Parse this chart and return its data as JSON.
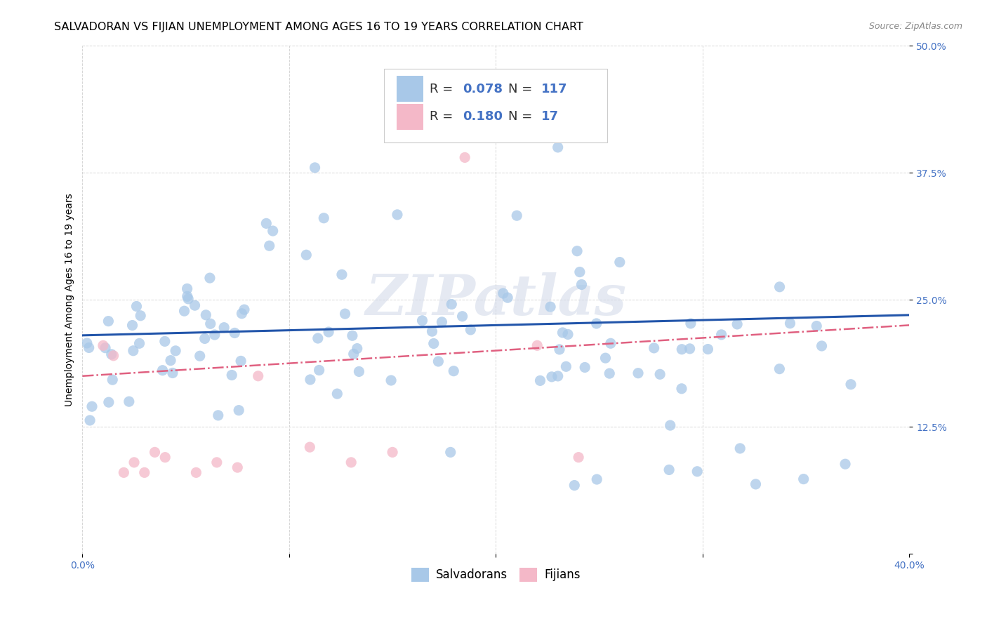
{
  "title": "SALVADORAN VS FIJIAN UNEMPLOYMENT AMONG AGES 16 TO 19 YEARS CORRELATION CHART",
  "source": "Source: ZipAtlas.com",
  "ylabel": "Unemployment Among Ages 16 to 19 years",
  "xlim": [
    0.0,
    0.4
  ],
  "ylim": [
    0.0,
    0.5
  ],
  "xticks": [
    0.0,
    0.1,
    0.2,
    0.3,
    0.4
  ],
  "xticklabels": [
    "0.0%",
    "",
    "",
    "",
    "40.0%"
  ],
  "yticks": [
    0.0,
    0.125,
    0.25,
    0.375,
    0.5
  ],
  "yticklabels": [
    "",
    "12.5%",
    "25.0%",
    "37.5%",
    "50.0%"
  ],
  "salvadoran_R": "0.078",
  "salvadoran_N": "117",
  "fijian_R": "0.180",
  "fijian_N": "17",
  "salvadoran_color": "#a8c8e8",
  "fijian_color": "#f4b8c8",
  "trendline_salvadoran_color": "#2255aa",
  "trendline_fijian_color": "#e06080",
  "background_color": "#ffffff",
  "grid_color": "#cccccc",
  "watermark": "ZIPatlas",
  "title_fontsize": 11.5,
  "axis_label_fontsize": 10,
  "tick_fontsize": 10,
  "legend_fontsize": 12,
  "sal_trend_x0": 0.0,
  "sal_trend_y0": 0.215,
  "sal_trend_x1": 0.4,
  "sal_trend_y1": 0.235,
  "fij_trend_x0": 0.0,
  "fij_trend_y0": 0.175,
  "fij_trend_x1": 0.4,
  "fij_trend_y1": 0.225,
  "sal_seed": 12,
  "fij_seed": 99
}
